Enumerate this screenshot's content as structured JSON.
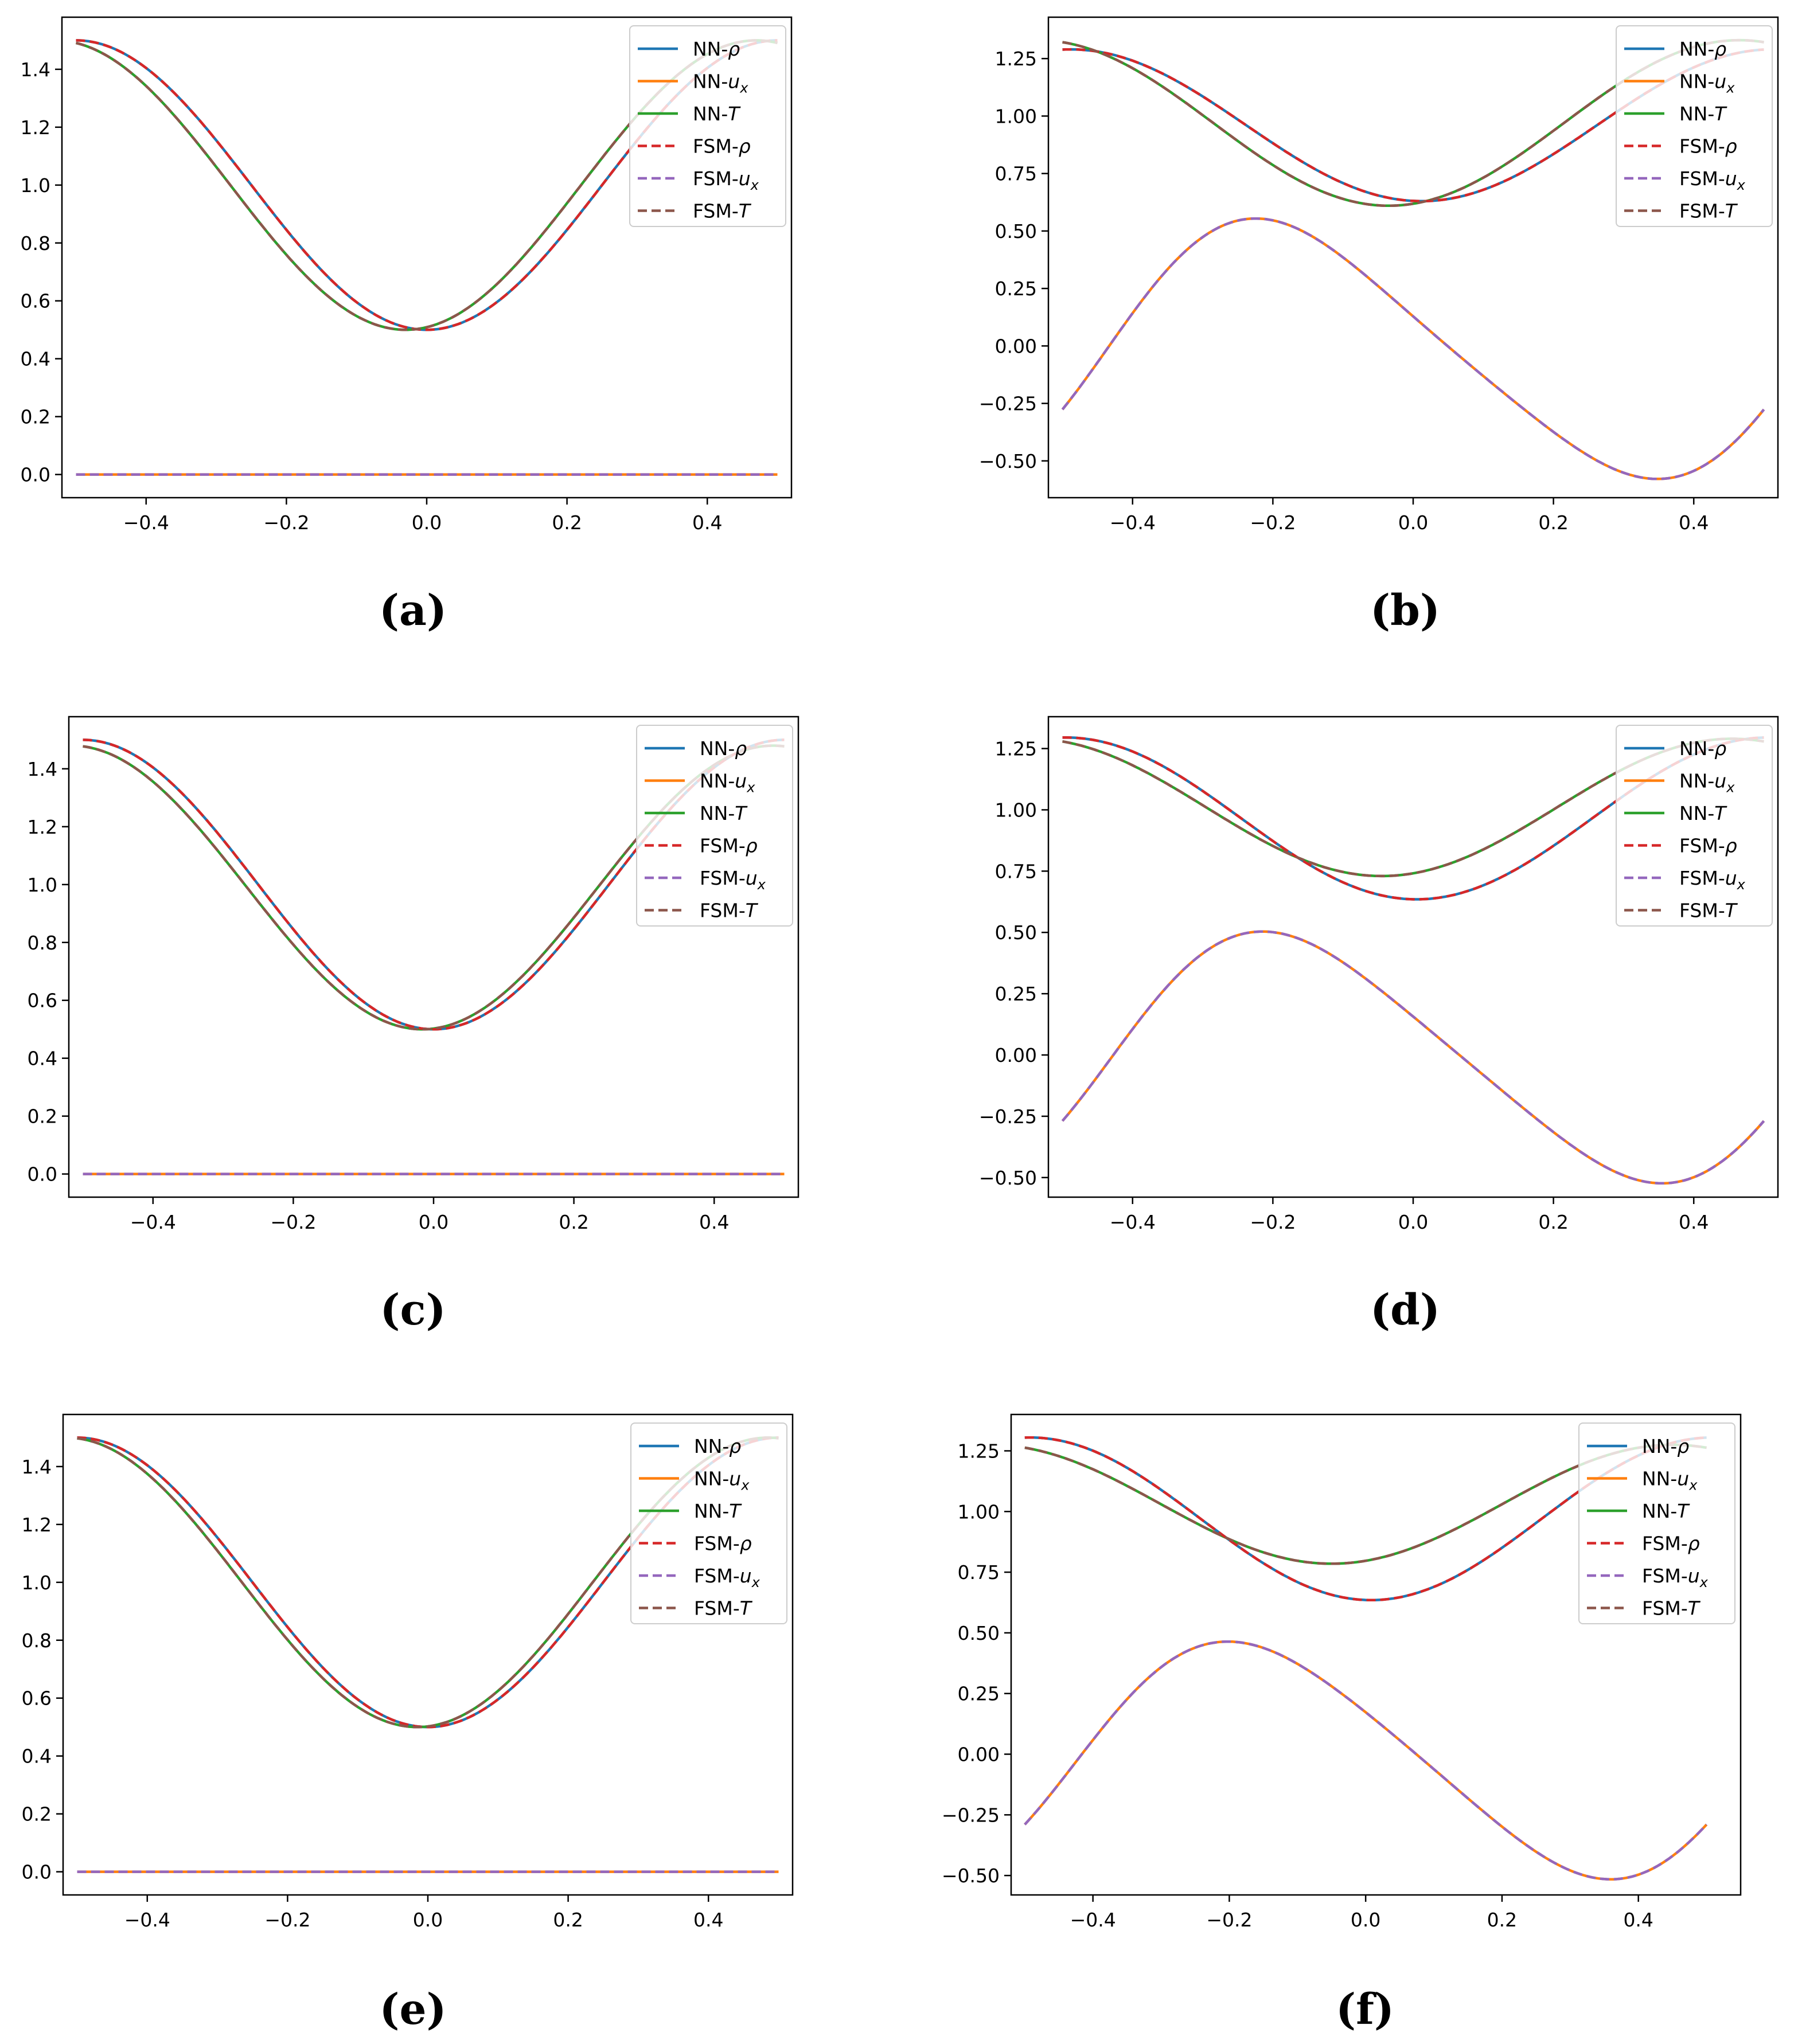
{
  "figure": {
    "legend_entries": [
      {
        "prefix": "NN-",
        "sym": "ρ",
        "sub": "",
        "color": "#1f77b4",
        "dashed": false
      },
      {
        "prefix": "NN-",
        "sym": "u",
        "sub": "x",
        "color": "#ff7f0e",
        "dashed": false
      },
      {
        "prefix": "NN-",
        "sym": "T",
        "sub": "",
        "color": "#2ca02c",
        "dashed": false
      },
      {
        "prefix": "FSM-",
        "sym": "ρ",
        "sub": "",
        "color": "#d62728",
        "dashed": true
      },
      {
        "prefix": "FSM-",
        "sym": "u",
        "sub": "x",
        "color": "#9467bd",
        "dashed": true
      },
      {
        "prefix": "FSM-",
        "sym": "T",
        "sub": "",
        "color": "#8c564b",
        "dashed": true
      }
    ]
  },
  "chart_data": [
    {
      "type": "line",
      "label": "(a)",
      "xlim": [
        -0.52,
        0.52
      ],
      "ylim": [
        -0.08,
        1.58
      ],
      "xticks": [
        -0.4,
        -0.2,
        0.0,
        0.2,
        0.4
      ],
      "xtick_labels": [
        "−0.4",
        "−0.2",
        "0.0",
        "0.2",
        "0.4"
      ],
      "yticks": [
        0.0,
        0.2,
        0.4,
        0.6,
        0.8,
        1.0,
        1.2,
        1.4
      ],
      "ytick_labels": [
        "0.0",
        "0.2",
        "0.4",
        "0.6",
        "0.8",
        "1.0",
        "1.2",
        "1.4"
      ],
      "legend_location": "upper-right",
      "series": [
        {
          "name": "rho",
          "form": "sin",
          "mean": 1.0,
          "amp": 0.5,
          "phase": 0.25,
          "shift": 0.0
        },
        {
          "name": "ux",
          "form": "sin",
          "mean": 0.0,
          "amp": 0.0,
          "phase": 0.0,
          "shift": 0.0
        },
        {
          "name": "T",
          "form": "sin",
          "mean": 1.0,
          "amp": 0.5,
          "phase": 0.22,
          "shift": 0.0
        }
      ]
    },
    {
      "type": "line",
      "label": "(b)",
      "xlim": [
        -0.52,
        0.52
      ],
      "ylim": [
        -0.66,
        1.43
      ],
      "xticks": [
        -0.4,
        -0.2,
        0.0,
        0.2,
        0.4
      ],
      "xtick_labels": [
        "−0.4",
        "−0.2",
        "0.0",
        "0.2",
        "0.4"
      ],
      "yticks": [
        -0.5,
        -0.25,
        0.0,
        0.25,
        0.5,
        0.75,
        1.0,
        1.25
      ],
      "ytick_labels": [
        "−0.50",
        "−0.25",
        "0.00",
        "0.25",
        "0.50",
        "0.75",
        "1.00",
        "1.25"
      ],
      "legend_location": "upper-right",
      "series": [
        {
          "name": "rho",
          "form": "sin",
          "mean": 0.96,
          "amp": 0.33,
          "phase": 0.262,
          "shift": 0.0
        },
        {
          "name": "ux",
          "form": "sin2",
          "mean": -0.02,
          "amp": 0.55,
          "phase": -0.44,
          "amp2": 0.07,
          "phase2": 0.07
        },
        {
          "name": "T",
          "form": "sin",
          "mean": 0.97,
          "amp": 0.36,
          "phase": 0.215,
          "shift": 0.0
        }
      ]
    },
    {
      "type": "line",
      "label": "(c)",
      "xlim": [
        -0.52,
        0.52
      ],
      "ylim": [
        -0.08,
        1.58
      ],
      "xticks": [
        -0.4,
        -0.2,
        0.0,
        0.2,
        0.4
      ],
      "xtick_labels": [
        "−0.4",
        "−0.2",
        "0.0",
        "0.2",
        "0.4"
      ],
      "yticks": [
        0.0,
        0.2,
        0.4,
        0.6,
        0.8,
        1.0,
        1.2,
        1.4
      ],
      "ytick_labels": [
        "0.0",
        "0.2",
        "0.4",
        "0.6",
        "0.8",
        "1.0",
        "1.2",
        "1.4"
      ],
      "legend_location": "upper-right",
      "series": [
        {
          "name": "rho",
          "form": "sin",
          "mean": 1.0,
          "amp": 0.5,
          "phase": 0.25,
          "shift": 0.0
        },
        {
          "name": "ux",
          "form": "sin",
          "mean": 0.0,
          "amp": 0.0,
          "phase": 0.0,
          "shift": 0.0
        },
        {
          "name": "T",
          "form": "sin",
          "mean": 0.99,
          "amp": 0.49,
          "phase": 0.222,
          "shift": 0.012
        }
      ]
    },
    {
      "type": "line",
      "label": "(d)",
      "xlim": [
        -0.52,
        0.52
      ],
      "ylim": [
        -0.58,
        1.38
      ],
      "xticks": [
        -0.4,
        -0.2,
        0.0,
        0.2,
        0.4
      ],
      "xtick_labels": [
        "−0.4",
        "−0.2",
        "0.0",
        "0.2",
        "0.4"
      ],
      "yticks": [
        -0.5,
        -0.25,
        0.0,
        0.25,
        0.5,
        0.75,
        1.0,
        1.25
      ],
      "ytick_labels": [
        "−0.50",
        "−0.25",
        "0.00",
        "0.25",
        "0.50",
        "0.75",
        "1.00",
        "1.25"
      ],
      "legend_location": "upper-right",
      "series": [
        {
          "name": "rho",
          "form": "sin",
          "mean": 0.965,
          "amp": 0.33,
          "phase": 0.255,
          "shift": 0.0
        },
        {
          "name": "ux",
          "form": "sin2",
          "mean": -0.01,
          "amp": 0.5,
          "phase": -0.43,
          "amp2": 0.06,
          "phase2": 0.07
        },
        {
          "name": "T",
          "form": "sin",
          "mean": 1.01,
          "amp": 0.28,
          "phase": 0.205,
          "shift": 0.0
        }
      ]
    },
    {
      "type": "line",
      "label": "(e)",
      "xlim": [
        -0.52,
        0.52
      ],
      "ylim": [
        -0.08,
        1.58
      ],
      "xticks": [
        -0.4,
        -0.2,
        0.0,
        0.2,
        0.4
      ],
      "xtick_labels": [
        "−0.4",
        "−0.2",
        "0.0",
        "0.2",
        "0.4"
      ],
      "yticks": [
        0.0,
        0.2,
        0.4,
        0.6,
        0.8,
        1.0,
        1.2,
        1.4
      ],
      "ytick_labels": [
        "0.0",
        "0.2",
        "0.4",
        "0.6",
        "0.8",
        "1.0",
        "1.2",
        "1.4"
      ],
      "legend_location": "upper-right",
      "series": [
        {
          "name": "rho",
          "form": "sin",
          "mean": 1.0,
          "amp": 0.5,
          "phase": 0.25,
          "shift": 0.0
        },
        {
          "name": "ux",
          "form": "sin",
          "mean": 0.0,
          "amp": 0.0,
          "phase": 0.0,
          "shift": 0.0
        },
        {
          "name": "T",
          "form": "sin",
          "mean": 1.0,
          "amp": 0.5,
          "phase": 0.225,
          "shift": 0.01
        }
      ]
    },
    {
      "type": "line",
      "label": "(f)",
      "xlim": [
        -0.52,
        0.55
      ],
      "ylim": [
        -0.58,
        1.4
      ],
      "xticks": [
        -0.4,
        -0.2,
        0.0,
        0.2,
        0.4
      ],
      "xtick_labels": [
        "−0.4",
        "−0.2",
        "0.0",
        "0.2",
        "0.4"
      ],
      "yticks": [
        -0.5,
        -0.25,
        0.0,
        0.25,
        0.5,
        0.75,
        1.0,
        1.25
      ],
      "ytick_labels": [
        "−0.50",
        "−0.25",
        "0.00",
        "0.25",
        "0.50",
        "0.75",
        "1.00",
        "1.25"
      ],
      "legend_location": "upper-right",
      "series": [
        {
          "name": "rho",
          "form": "sin",
          "mean": 0.97,
          "amp": 0.335,
          "phase": 0.258,
          "shift": 0.0
        },
        {
          "name": "ux",
          "form": "sin2",
          "mean": -0.02,
          "amp": 0.48,
          "phase": -0.42,
          "amp2": 0.05,
          "phase2": 0.07
        },
        {
          "name": "T",
          "form": "sin",
          "mean": 1.03,
          "amp": 0.245,
          "phase": 0.2,
          "shift": 0.0
        }
      ]
    }
  ]
}
